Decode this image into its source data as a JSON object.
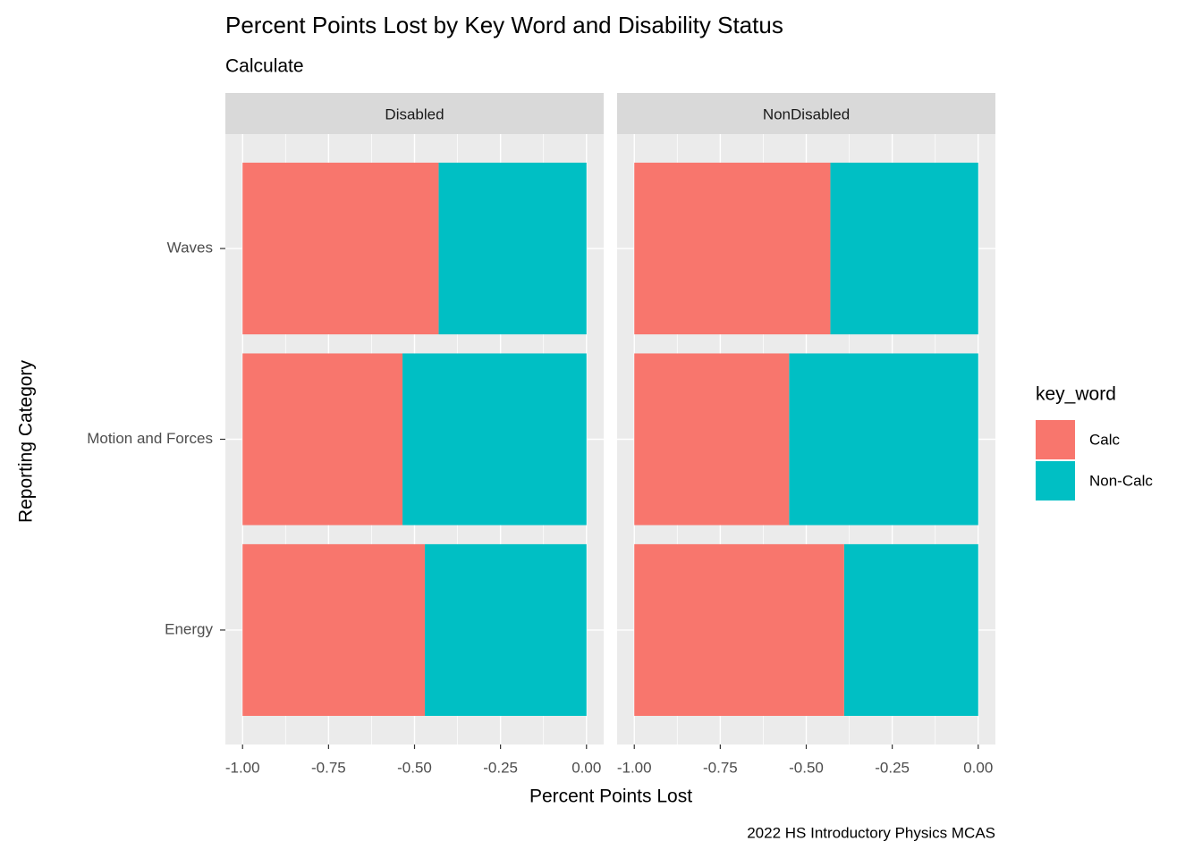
{
  "chart_data": {
    "type": "bar",
    "orientation": "horizontal",
    "stacked": true,
    "title": "Percent Points Lost by Key Word and Disability Status",
    "subtitle": "Calculate",
    "caption": "2022 HS Introductory Physics MCAS",
    "x_label": "Percent Points Lost",
    "y_label": "Reporting Category",
    "legend_title": "key_word",
    "facets": [
      "Disabled",
      "NonDisabled"
    ],
    "categories": [
      "Energy",
      "Motion and Forces",
      "Waves"
    ],
    "series": [
      {
        "name": "Non-Calc",
        "color": "#00bfc4",
        "values": [
          [
            -0.47,
            -0.535,
            -0.43
          ],
          [
            -0.39,
            -0.55,
            -0.43
          ]
        ]
      },
      {
        "name": "Calc",
        "color": "#f8766d",
        "values": [
          [
            -0.53,
            -0.465,
            -0.57
          ],
          [
            -0.61,
            -0.45,
            -0.57
          ]
        ]
      }
    ],
    "legend_order": [
      1,
      0
    ],
    "xlim": [
      -1.05,
      0.05
    ],
    "xticks": [
      {
        "value": -1,
        "label": "-1.00"
      },
      {
        "value": -0.75,
        "label": "-0.75"
      },
      {
        "value": -0.5,
        "label": "-0.50"
      },
      {
        "value": -0.25,
        "label": "-0.25"
      },
      {
        "value": 0,
        "label": "0.00"
      }
    ],
    "grid": true
  }
}
